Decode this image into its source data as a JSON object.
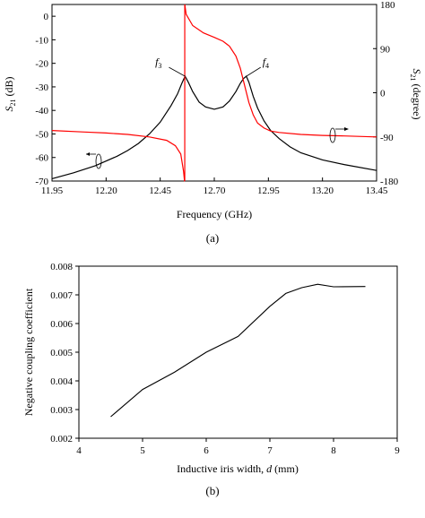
{
  "chart_data": [
    {
      "panel_label": "(a)",
      "type": "line",
      "xlabel": "Frequency (GHz)",
      "ylabel_left": {
        "symbol": "S",
        "sub": "21",
        "unit": " (dB)"
      },
      "ylabel_right": {
        "symbol": "S",
        "sub": "21",
        "unit": " (degree)"
      },
      "xlim": [
        11.95,
        13.45
      ],
      "ylim_left": [
        -70,
        5
      ],
      "ylim_right": [
        -180,
        180
      ],
      "x_ticks": [
        "11.95",
        "12.20",
        "12.45",
        "12.70",
        "12.95",
        "13.20",
        "13.45"
      ],
      "y_ticks_left": [
        "0",
        "-10",
        "-20",
        "-30",
        "-40",
        "-50",
        "-60",
        "-70"
      ],
      "y_ticks_right": [
        "180",
        "90",
        "0",
        "-90",
        "-180"
      ],
      "annotations": [
        {
          "label": "f",
          "sub": "3",
          "x": 12.565,
          "y": -25.5
        },
        {
          "label": "f",
          "sub": "4",
          "x": 12.848,
          "y": -25.5
        }
      ],
      "series": [
        {
          "axis": "left",
          "color": "#000000",
          "x": [
            11.95,
            12.05,
            12.15,
            12.25,
            12.3,
            12.35,
            12.4,
            12.45,
            12.5,
            12.53,
            12.55,
            12.565,
            12.58,
            12.6,
            12.63,
            12.66,
            12.7,
            12.74,
            12.77,
            12.8,
            12.82,
            12.835,
            12.848,
            12.86,
            12.88,
            12.9,
            12.93,
            12.96,
            13.0,
            13.05,
            13.1,
            13.2,
            13.3,
            13.45
          ],
          "values": [
            -69,
            -66.5,
            -63.5,
            -59.5,
            -57,
            -54,
            -50,
            -45,
            -38,
            -33,
            -28.5,
            -25.5,
            -28,
            -32,
            -36.5,
            -38.5,
            -39.5,
            -38.5,
            -36,
            -32,
            -28.5,
            -26.5,
            -25.5,
            -28,
            -34,
            -39,
            -44.5,
            -48.5,
            -52,
            -55.5,
            -58,
            -61,
            -63,
            -65.5
          ]
        },
        {
          "axis": "right",
          "color": "#ff0000",
          "x": [
            11.95,
            12.1,
            12.2,
            12.3,
            12.4,
            12.48,
            12.52,
            12.545,
            12.558,
            12.5625,
            12.5635,
            12.57,
            12.6,
            12.65,
            12.7,
            12.74,
            12.77,
            12.8,
            12.82,
            12.84,
            12.86,
            12.88,
            12.9,
            12.93,
            12.96,
            13.0,
            13.1,
            13.2,
            13.3,
            13.45
          ],
          "values": [
            -77,
            -80,
            -82,
            -85,
            -90,
            -97,
            -108,
            -125,
            -160,
            -180,
            180,
            160,
            137,
            122,
            113,
            105,
            95,
            75,
            50,
            15,
            -20,
            -45,
            -62,
            -72,
            -78,
            -81,
            -85,
            -87,
            -88,
            -90
          ]
        }
      ]
    },
    {
      "panel_label": "(b)",
      "type": "line",
      "xlabel": {
        "prefix": "Inductive iris width, ",
        "var": "d",
        "suffix": " (mm)"
      },
      "ylabel": "Negative coupling coefficient",
      "xlim": [
        4,
        9
      ],
      "ylim": [
        0.002,
        0.008
      ],
      "x_ticks": [
        "4",
        "5",
        "6",
        "7",
        "8",
        "9"
      ],
      "y_ticks": [
        "0.002",
        "0.003",
        "0.004",
        "0.005",
        "0.006",
        "0.007",
        "0.008"
      ],
      "series": [
        {
          "color": "#000000",
          "x": [
            4.5,
            5.0,
            5.5,
            6.0,
            6.5,
            7.0,
            7.25,
            7.5,
            7.75,
            8.0,
            8.5
          ],
          "values": [
            0.00275,
            0.0037,
            0.0043,
            0.005,
            0.00555,
            0.0066,
            0.00705,
            0.00725,
            0.00737,
            0.00728,
            0.00729
          ]
        }
      ]
    }
  ]
}
